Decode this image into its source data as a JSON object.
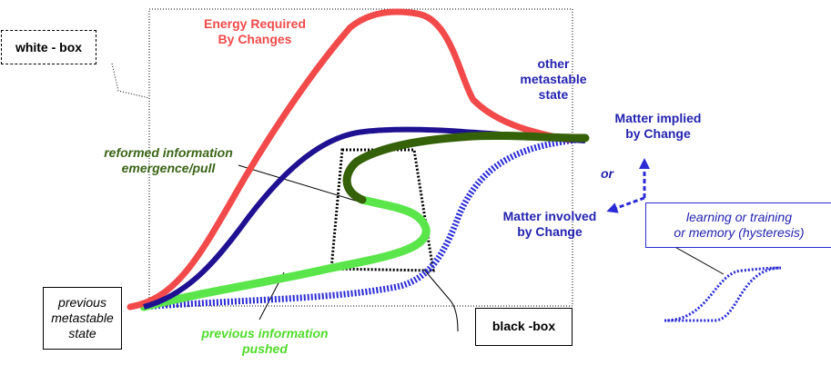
{
  "colors": {
    "energy": "#f24a4a",
    "implied": "#1f1191",
    "reformed": "#356108",
    "pushed": "#5ae64a",
    "involved": "#2b2bd6",
    "label_blue": "#2323b0",
    "label_red": "#e83a2a",
    "label_green_dark": "#3b6416",
    "label_green_light": "#4fdc29"
  },
  "labels": {
    "energy_line1": "Energy Required",
    "energy_line2": "By Changes",
    "other_line1": "other",
    "other_line2": "metastable",
    "other_line3": "state",
    "implied_line1": "Matter implied",
    "implied_line2": "by Change",
    "or": "or",
    "involved_line1": "Matter involved",
    "involved_line2": "by Change",
    "reformed_line1": "reformed information",
    "reformed_line2": "emergence/pull",
    "pushed_line1": "previous information",
    "pushed_line2": "pushed"
  },
  "boxes": {
    "white_box": "white - box",
    "black_box": "black -box",
    "previous_line1": "previous",
    "previous_line2": "metastable",
    "previous_line3": "state",
    "learning_line1": "learning or training",
    "learning_line2": "or memory (hysteresis)"
  }
}
